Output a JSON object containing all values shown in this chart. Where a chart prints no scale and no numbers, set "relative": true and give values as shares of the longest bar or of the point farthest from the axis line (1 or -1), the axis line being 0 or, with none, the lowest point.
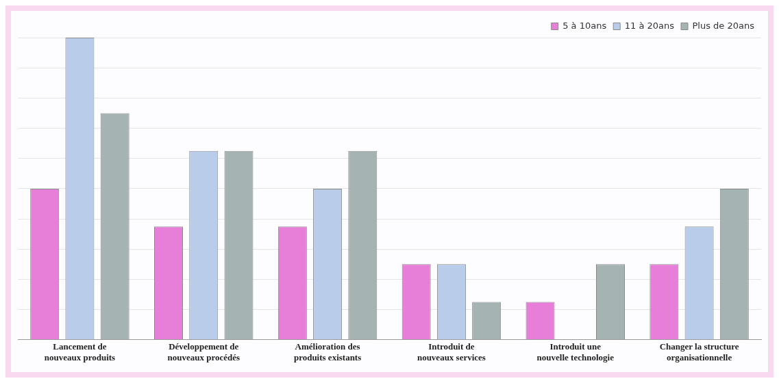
{
  "chart_data": {
    "type": "bar",
    "relative": true,
    "grid": "y",
    "legend": "top right",
    "categories": [
      "Lancement de nouveaux produits",
      "Développement de nouveaux procédés",
      "Amélioration des produits existants",
      "Introduit de nouveaux services",
      "Introduit une nouvelle technologie",
      "Changer la structure organisationnelle"
    ],
    "series": [
      {
        "name": "5 à 10ans",
        "color": "#e77fd9",
        "values": [
          0.5,
          0.375,
          0.375,
          0.25,
          0.125,
          0.25
        ]
      },
      {
        "name": "11 à 20ans",
        "color": "#b9cdea",
        "values": [
          1,
          0.625,
          0.5,
          0.25,
          0,
          0.375
        ]
      },
      {
        "name": "Plus de 20ans",
        "color": "#a5b3b3",
        "values": [
          0.75,
          0.625,
          0.625,
          0.125,
          0.25,
          0.5
        ]
      }
    ]
  }
}
